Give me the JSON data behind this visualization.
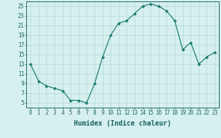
{
  "x": [
    0,
    1,
    2,
    3,
    4,
    5,
    6,
    7,
    8,
    9,
    10,
    11,
    12,
    13,
    14,
    15,
    16,
    17,
    18,
    19,
    20,
    21,
    22,
    23
  ],
  "y": [
    13,
    9.5,
    8.5,
    8,
    7.5,
    5.5,
    5.5,
    5,
    9,
    14.5,
    19,
    21.5,
    22,
    23.5,
    25,
    25.5,
    25,
    24,
    22,
    16,
    17.5,
    13,
    14.5,
    15.5
  ],
  "line_color": "#1a7a6e",
  "marker": "D",
  "marker_size": 2.2,
  "bg_color": "#d6f0f0",
  "grid_color": "#b8dada",
  "xlabel": "Humidex (Indice chaleur)",
  "ylim": [
    4,
    26
  ],
  "xlim": [
    -0.5,
    23.5
  ],
  "yticks": [
    5,
    7,
    9,
    11,
    13,
    15,
    17,
    19,
    21,
    23,
    25
  ],
  "xticks": [
    0,
    1,
    2,
    3,
    4,
    5,
    6,
    7,
    8,
    9,
    10,
    11,
    12,
    13,
    14,
    15,
    16,
    17,
    18,
    19,
    20,
    21,
    22,
    23
  ],
  "font_color": "#1a6060",
  "label_fontsize": 6.5,
  "tick_fontsize": 5.5,
  "xlabel_fontsize": 7.0
}
